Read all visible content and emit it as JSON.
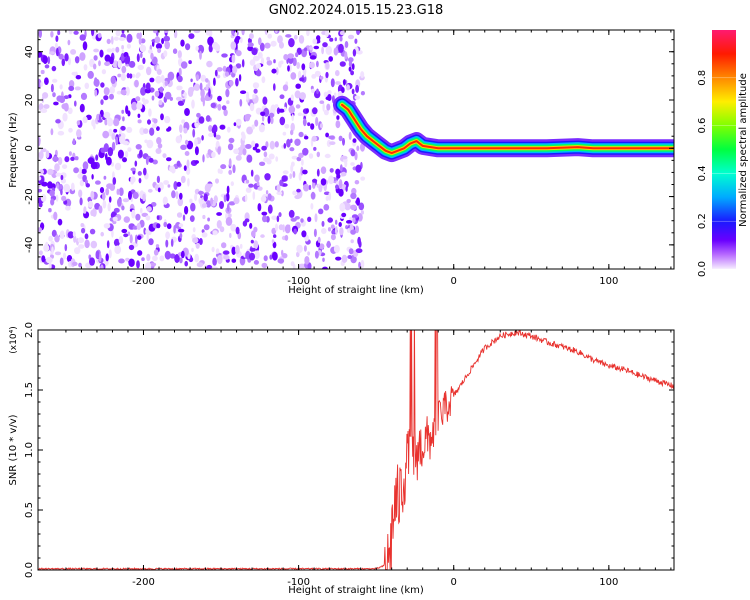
{
  "title": "GN02.2024.015.15.23.G18",
  "chart_data": [
    {
      "type": "heatmap",
      "xlabel": "Height of straight line (km)",
      "ylabel": "Frequency (Hz)",
      "xlim": [
        -268,
        142
      ],
      "ylim": [
        -50,
        49
      ],
      "xticks": [
        -200,
        -100,
        0,
        100
      ],
      "yticks": [
        -40,
        -20,
        0,
        20,
        40
      ],
      "noise_region_x": [
        -268,
        -61
      ],
      "ridge": {
        "x": [
          -72,
          -68,
          -64,
          -60,
          -56,
          -52,
          -48,
          -44,
          -40,
          -36,
          -32,
          -28,
          -24,
          -20,
          -10,
          0,
          20,
          40,
          60,
          80,
          90,
          100,
          120,
          142
        ],
        "y": [
          18,
          16,
          12,
          8,
          5,
          3,
          1,
          -1,
          -2,
          -1,
          0,
          2,
          3,
          1,
          0,
          0,
          0,
          0,
          0,
          0.5,
          0,
          0,
          0,
          0
        ]
      },
      "colorbar": {
        "label": "Normalized spectral amplitude",
        "range": [
          0.0,
          1.0
        ],
        "ticks": [
          0.0,
          0.2,
          0.4,
          0.6,
          0.8
        ]
      }
    },
    {
      "type": "line",
      "xlabel": "Height of straight line (km)",
      "ylabel": "SNR (10 * v/v)",
      "scale_label": "(x10⁴)",
      "xlim": [
        -268,
        142
      ],
      "ylim": [
        0,
        2.0
      ],
      "xticks": [
        -200,
        -100,
        0,
        100
      ],
      "yticks": [
        0.0,
        0.5,
        1.0,
        1.5,
        2.0
      ],
      "ytick_labels": [
        "0.0",
        "0.5",
        "1.0",
        "1.5",
        "2.0"
      ],
      "color": "#e8322e",
      "series": [
        {
          "x": [
            -268,
            -200,
            -100,
            -50,
            -42,
            -38,
            -35,
            -30,
            -25,
            -20,
            -15,
            -10,
            -5,
            0,
            10,
            20,
            30,
            40,
            50,
            60,
            70,
            80,
            90,
            100,
            110,
            120,
            130,
            142
          ],
          "y": [
            0.01,
            0.01,
            0.01,
            0.01,
            0.05,
            0.55,
            0.6,
            0.9,
            0.95,
            1.05,
            1.1,
            1.25,
            1.35,
            1.45,
            1.65,
            1.85,
            1.95,
            1.98,
            1.95,
            1.9,
            1.86,
            1.82,
            1.75,
            1.7,
            1.67,
            1.62,
            1.58,
            1.53
          ]
        }
      ]
    }
  ]
}
